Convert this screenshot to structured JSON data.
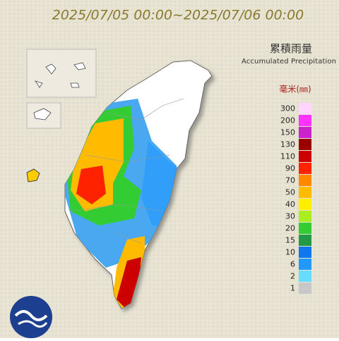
{
  "header": {
    "title": "2025/07/05 00:00~2025/07/06 00:00"
  },
  "legend": {
    "title_zh": "累積雨量",
    "title_en": "Accumulated Precipitation",
    "unit": "毫米(㎜)",
    "items": [
      {
        "value": 300,
        "color": "#ffd4ff"
      },
      {
        "value": 200,
        "color": "#ff33ff"
      },
      {
        "value": 150,
        "color": "#cc22cc"
      },
      {
        "value": 130,
        "color": "#990000"
      },
      {
        "value": 110,
        "color": "#cc0000"
      },
      {
        "value": 90,
        "color": "#ff2200"
      },
      {
        "value": 70,
        "color": "#ff8800"
      },
      {
        "value": 50,
        "color": "#ffbb00"
      },
      {
        "value": 40,
        "color": "#ffee00"
      },
      {
        "value": 30,
        "color": "#aaee22"
      },
      {
        "value": 20,
        "color": "#33cc33"
      },
      {
        "value": 15,
        "color": "#229944"
      },
      {
        "value": 10,
        "color": "#1177ee"
      },
      {
        "value": 6,
        "color": "#2299ff"
      },
      {
        "value": 2,
        "color": "#66ddff"
      },
      {
        "value": 1,
        "color": "#c8c8c8"
      }
    ]
  }
}
